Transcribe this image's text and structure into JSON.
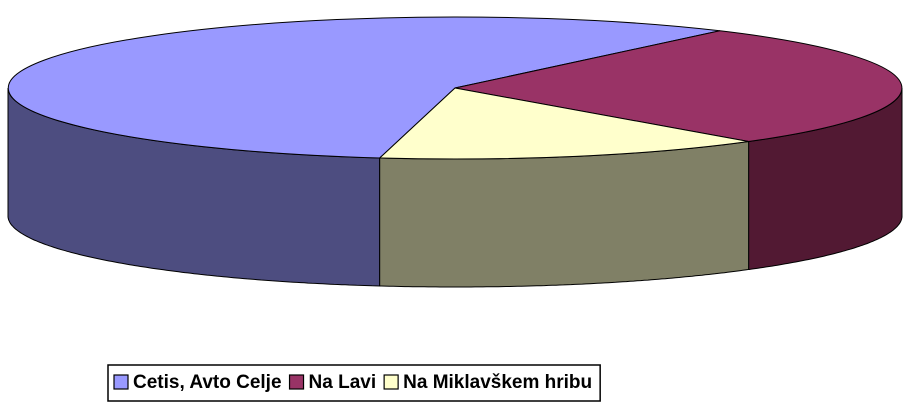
{
  "chart_data": {
    "type": "pie3d",
    "categories": [
      "Cetis, Avto Celje",
      "Na Lavi",
      "Na Miklavškem hribu"
    ],
    "values": [
      57.4,
      28.5,
      14.1
    ],
    "colors": [
      "#9999ff",
      "#993366",
      "#ffffcc"
    ],
    "side_colors": [
      "#4d4d80",
      "#521933",
      "#808066"
    ],
    "legend": "bottom"
  }
}
